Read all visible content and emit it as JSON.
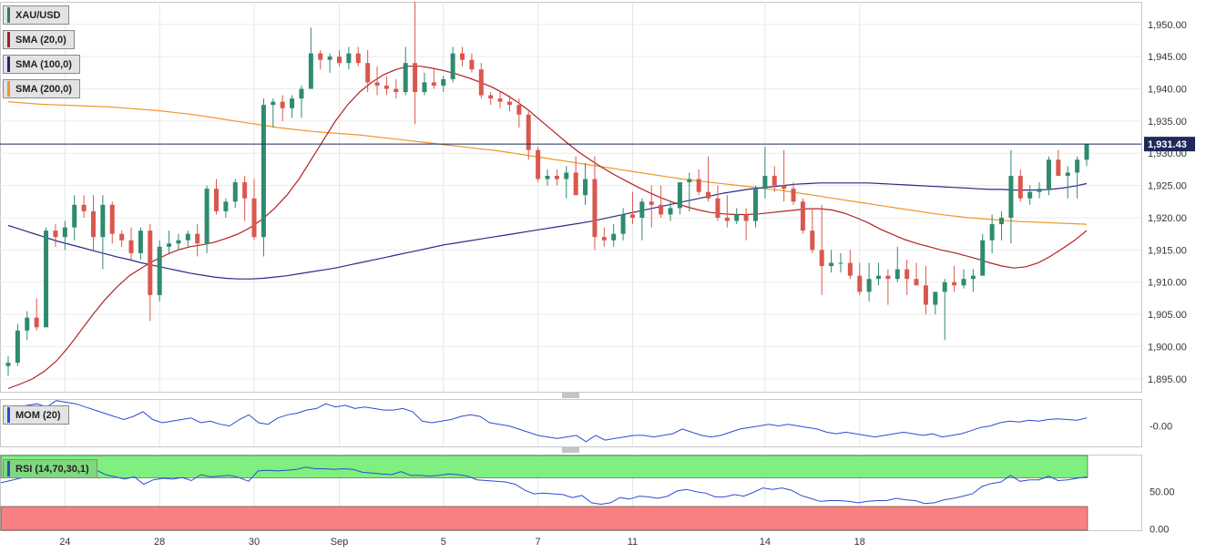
{
  "legends": [
    {
      "label": "XAU/USD",
      "color": "#2e7d65"
    },
    {
      "label": "SMA (20,0)",
      "color": "#a02020"
    },
    {
      "label": "SMA (100,0)",
      "color": "#222288"
    },
    {
      "label": "SMA (200,0)",
      "color": "#f0962a"
    }
  ],
  "mom_label": "MOM (20)",
  "rsi_label": "RSI (14,70,30,1)",
  "colors": {
    "up": "#2e8b6e",
    "down": "#d9584e",
    "sma20": "#b22222",
    "sma100": "#2a2a8a",
    "sma200": "#f0962a",
    "mom": "#2d4bd6",
    "rsi": "#2d4bd6",
    "rsi_over": "#7ff07f",
    "rsi_under": "#f98080",
    "price_line": "#1f2a5a"
  },
  "chart_data": [
    {
      "type": "candlestick",
      "title": "XAU/USD",
      "current_price_label": "1,931.43",
      "y_ticks": [
        "1,950.00",
        "1,945.00",
        "1,940.00",
        "1,935.00",
        "1,930.00",
        "1,925.00",
        "1,920.00",
        "1,915.00",
        "1,910.00",
        "1,905.00",
        "1,900.00",
        "1,895.00"
      ],
      "y_tick_values": [
        1950,
        1945,
        1940,
        1935,
        1930,
        1925,
        1920,
        1915,
        1910,
        1905,
        1900,
        1895
      ],
      "ylim": [
        1893,
        1953.5
      ],
      "x_ticks": [
        "24",
        "28",
        "30",
        "Sep",
        "5",
        "7",
        "11",
        "14",
        "18"
      ],
      "x_tick_index": [
        6,
        16,
        26,
        35,
        46,
        56,
        66,
        80,
        90
      ],
      "candles": [
        [
          1897.0,
          1898.5,
          1895.5,
          1897.5
        ],
        [
          1897.5,
          1903.5,
          1897.0,
          1902.5
        ],
        [
          1902.5,
          1905.5,
          1901.0,
          1904.5
        ],
        [
          1904.5,
          1907.5,
          1902.5,
          1903.0
        ],
        [
          1903.0,
          1918.5,
          1903.0,
          1918.0
        ],
        [
          1918.0,
          1919.0,
          1915.5,
          1917.0
        ],
        [
          1917.0,
          1919.5,
          1915.0,
          1918.5
        ],
        [
          1918.5,
          1923.5,
          1916.5,
          1922.0
        ],
        [
          1922.0,
          1923.5,
          1920.0,
          1921.0
        ],
        [
          1921.0,
          1923.5,
          1915.0,
          1917.0
        ],
        [
          1917.0,
          1923.5,
          1912.0,
          1922.0
        ],
        [
          1922.0,
          1922.5,
          1916.0,
          1917.5
        ],
        [
          1917.5,
          1918.0,
          1915.5,
          1916.5
        ],
        [
          1916.5,
          1918.5,
          1913.5,
          1914.5
        ],
        [
          1914.5,
          1918.5,
          1913.5,
          1918.0
        ],
        [
          1918.0,
          1919.0,
          1904.0,
          1908.0
        ],
        [
          1908.0,
          1916.5,
          1907.0,
          1915.5
        ],
        [
          1915.5,
          1918.0,
          1914.5,
          1916.0
        ],
        [
          1916.0,
          1917.5,
          1915.0,
          1916.5
        ],
        [
          1916.5,
          1918.0,
          1915.5,
          1917.5
        ],
        [
          1917.5,
          1919.0,
          1914.0,
          1916.0
        ],
        [
          1916.0,
          1925.0,
          1914.5,
          1924.5
        ],
        [
          1924.5,
          1926.0,
          1920.5,
          1921.0
        ],
        [
          1921.0,
          1923.0,
          1920.0,
          1922.5
        ],
        [
          1922.5,
          1926.0,
          1921.5,
          1925.5
        ],
        [
          1925.5,
          1926.5,
          1919.5,
          1923.0
        ],
        [
          1923.0,
          1926.0,
          1916.5,
          1917.0
        ],
        [
          1917.0,
          1938.5,
          1914.0,
          1937.5
        ],
        [
          1937.5,
          1938.5,
          1934.0,
          1938.0
        ],
        [
          1938.0,
          1939.0,
          1935.0,
          1937.0
        ],
        [
          1937.0,
          1939.0,
          1935.5,
          1938.5
        ],
        [
          1938.5,
          1940.5,
          1935.5,
          1940.0
        ],
        [
          1940.0,
          1949.5,
          1940.0,
          1945.5
        ],
        [
          1945.5,
          1946.0,
          1943.0,
          1944.5
        ],
        [
          1944.5,
          1945.5,
          1942.5,
          1945.0
        ],
        [
          1945.0,
          1946.0,
          1943.5,
          1944.0
        ],
        [
          1944.0,
          1946.5,
          1943.0,
          1945.5
        ],
        [
          1945.5,
          1946.5,
          1943.5,
          1944.0
        ],
        [
          1944.0,
          1946.0,
          1939.5,
          1941.0
        ],
        [
          1941.0,
          1943.5,
          1939.0,
          1940.5
        ],
        [
          1940.5,
          1942.0,
          1939.0,
          1940.0
        ],
        [
          1940.0,
          1941.5,
          1938.5,
          1939.5
        ],
        [
          1939.5,
          1946.5,
          1939.0,
          1944.0
        ],
        [
          1944.0,
          1953.5,
          1934.5,
          1939.5
        ],
        [
          1939.5,
          1942.5,
          1939.0,
          1941.0
        ],
        [
          1941.0,
          1943.0,
          1940.0,
          1940.5
        ],
        [
          1940.5,
          1942.0,
          1939.5,
          1941.5
        ],
        [
          1941.5,
          1946.5,
          1941.0,
          1945.5
        ],
        [
          1945.5,
          1946.5,
          1943.5,
          1944.5
        ],
        [
          1944.5,
          1945.5,
          1942.5,
          1943.0
        ],
        [
          1943.0,
          1944.0,
          1938.5,
          1939.0
        ],
        [
          1939.0,
          1939.5,
          1937.5,
          1938.5
        ],
        [
          1938.5,
          1939.5,
          1937.0,
          1938.0
        ],
        [
          1938.0,
          1939.0,
          1936.5,
          1937.5
        ],
        [
          1937.5,
          1938.5,
          1934.0,
          1936.0
        ],
        [
          1936.0,
          1936.5,
          1929.0,
          1930.5
        ],
        [
          1930.5,
          1931.0,
          1925.5,
          1926.0
        ],
        [
          1926.0,
          1927.5,
          1925.0,
          1926.5
        ],
        [
          1926.5,
          1927.5,
          1925.0,
          1926.0
        ],
        [
          1926.0,
          1928.0,
          1923.0,
          1927.0
        ],
        [
          1927.0,
          1929.5,
          1923.5,
          1923.5
        ],
        [
          1923.5,
          1928.5,
          1922.0,
          1926.0
        ],
        [
          1926.0,
          1929.5,
          1915.0,
          1917.0
        ],
        [
          1917.0,
          1918.5,
          1915.5,
          1916.5
        ],
        [
          1916.5,
          1919.0,
          1915.5,
          1917.5
        ],
        [
          1917.5,
          1921.5,
          1916.5,
          1920.5
        ],
        [
          1920.5,
          1924.0,
          1919.0,
          1920.0
        ],
        [
          1920.0,
          1923.0,
          1916.5,
          1922.5
        ],
        [
          1922.5,
          1925.0,
          1918.5,
          1922.0
        ],
        [
          1922.0,
          1925.0,
          1920.0,
          1920.5
        ],
        [
          1920.5,
          1922.5,
          1919.5,
          1921.5
        ],
        [
          1921.5,
          1925.0,
          1920.5,
          1925.5
        ],
        [
          1925.5,
          1927.0,
          1921.0,
          1926.0
        ],
        [
          1926.0,
          1927.5,
          1923.5,
          1924.0
        ],
        [
          1924.0,
          1929.5,
          1922.5,
          1923.0
        ],
        [
          1923.0,
          1925.0,
          1919.5,
          1920.0
        ],
        [
          1920.0,
          1923.5,
          1918.5,
          1919.5
        ],
        [
          1919.5,
          1921.5,
          1919.0,
          1920.5
        ],
        [
          1920.5,
          1921.5,
          1916.5,
          1919.5
        ],
        [
          1919.5,
          1925.0,
          1918.5,
          1924.5
        ],
        [
          1924.5,
          1931.0,
          1923.0,
          1926.5
        ],
        [
          1926.5,
          1928.0,
          1924.0,
          1925.0
        ],
        [
          1925.0,
          1930.5,
          1922.5,
          1924.5
        ],
        [
          1924.5,
          1925.5,
          1922.0,
          1922.5
        ],
        [
          1922.5,
          1923.0,
          1917.5,
          1918.0
        ],
        [
          1918.0,
          1921.5,
          1914.5,
          1915.0
        ],
        [
          1915.0,
          1922.0,
          1908.0,
          1912.5
        ],
        [
          1912.5,
          1915.0,
          1911.5,
          1913.0
        ],
        [
          1913.0,
          1914.5,
          1911.5,
          1913.0
        ],
        [
          1913.0,
          1915.0,
          1910.5,
          1911.0
        ],
        [
          1911.0,
          1913.0,
          1908.0,
          1908.5
        ],
        [
          1908.5,
          1913.0,
          1907.0,
          1910.5
        ],
        [
          1910.5,
          1913.0,
          1909.5,
          1911.0
        ],
        [
          1911.0,
          1912.0,
          1906.5,
          1910.5
        ],
        [
          1910.5,
          1915.5,
          1910.0,
          1912.0
        ],
        [
          1912.0,
          1913.5,
          1908.0,
          1910.5
        ],
        [
          1910.5,
          1913.0,
          1910.0,
          1909.5
        ],
        [
          1909.5,
          1912.5,
          1905.0,
          1906.5
        ],
        [
          1906.5,
          1908.5,
          1905.0,
          1908.5
        ],
        [
          1908.5,
          1910.5,
          1901.0,
          1910.0
        ],
        [
          1910.0,
          1912.5,
          1908.5,
          1909.5
        ],
        [
          1909.5,
          1912.0,
          1909.0,
          1910.5
        ],
        [
          1910.5,
          1912.0,
          1908.5,
          1911.0
        ],
        [
          1911.0,
          1917.5,
          1911.0,
          1916.5
        ],
        [
          1916.5,
          1920.5,
          1914.5,
          1919.0
        ],
        [
          1919.0,
          1921.0,
          1916.5,
          1920.0
        ],
        [
          1920.0,
          1930.5,
          1916.0,
          1926.5
        ],
        [
          1926.5,
          1927.5,
          1922.5,
          1923.0
        ],
        [
          1923.0,
          1925.0,
          1922.0,
          1924.0
        ],
        [
          1924.0,
          1925.5,
          1923.0,
          1924.5
        ],
        [
          1924.5,
          1929.5,
          1923.5,
          1929.0
        ],
        [
          1929.0,
          1930.5,
          1926.5,
          1926.5
        ],
        [
          1926.5,
          1928.0,
          1923.0,
          1927.0
        ],
        [
          1927.0,
          1929.5,
          1923.0,
          1929.0
        ],
        [
          1929.0,
          1931.5,
          1928.0,
          1931.43
        ]
      ],
      "sma20": [
        1893.5,
        1894.2,
        1895.0,
        1896.2,
        1897.8,
        1900.0,
        1902.5,
        1905.0,
        1907.3,
        1909.3,
        1911.0,
        1912.2,
        1913.3,
        1914.2,
        1915.0,
        1915.5,
        1915.8,
        1916.2,
        1916.8,
        1917.5,
        1918.5,
        1919.8,
        1921.5,
        1923.5,
        1926.0,
        1929.0,
        1932.0,
        1935.0,
        1937.5,
        1939.5,
        1941.0,
        1942.2,
        1943.0,
        1943.5,
        1943.5,
        1943.2,
        1942.8,
        1942.3,
        1941.7,
        1941.0,
        1940.2,
        1939.2,
        1938.0,
        1936.6,
        1935.0,
        1933.4,
        1931.8,
        1930.3,
        1929.0,
        1927.8,
        1926.7,
        1925.7,
        1924.7,
        1923.8,
        1923.0,
        1922.3,
        1921.7,
        1921.2,
        1920.8,
        1920.6,
        1920.5,
        1920.5,
        1920.6,
        1920.8,
        1921.0,
        1921.2,
        1921.4,
        1921.4,
        1921.2,
        1920.7,
        1920.0,
        1919.2,
        1918.2,
        1917.4,
        1916.6,
        1916.0,
        1915.5,
        1915.0,
        1914.6,
        1914.1,
        1913.6,
        1913.0,
        1912.5,
        1912.2,
        1912.4,
        1913.0,
        1914.0,
        1915.2,
        1916.5,
        1918.0
      ],
      "sma100": [
        1918.8,
        1918.2,
        1917.6,
        1917.0,
        1916.4,
        1915.9,
        1915.4,
        1914.9,
        1914.4,
        1913.9,
        1913.5,
        1913.0,
        1912.6,
        1912.2,
        1911.8,
        1911.4,
        1911.1,
        1910.8,
        1910.6,
        1910.5,
        1910.5,
        1910.6,
        1910.8,
        1911.0,
        1911.3,
        1911.6,
        1911.9,
        1912.2,
        1912.6,
        1913.0,
        1913.4,
        1913.8,
        1914.2,
        1914.6,
        1915.0,
        1915.4,
        1915.8,
        1916.1,
        1916.4,
        1916.7,
        1917.0,
        1917.3,
        1917.6,
        1917.9,
        1918.2,
        1918.5,
        1918.8,
        1919.1,
        1919.4,
        1919.8,
        1920.2,
        1920.6,
        1921.0,
        1921.4,
        1921.8,
        1922.2,
        1922.6,
        1923.0,
        1923.4,
        1923.8,
        1924.1,
        1924.4,
        1924.6,
        1924.8,
        1925.0,
        1925.2,
        1925.3,
        1925.4,
        1925.4,
        1925.4,
        1925.4,
        1925.4,
        1925.3,
        1925.2,
        1925.1,
        1925.0,
        1924.9,
        1924.8,
        1924.7,
        1924.6,
        1924.5,
        1924.4,
        1924.4,
        1924.3,
        1924.3,
        1924.3,
        1924.4,
        1924.6,
        1924.9,
        1925.3
      ],
      "sma200": [
        1938.0,
        1937.8,
        1937.6,
        1937.5,
        1937.4,
        1937.3,
        1937.2,
        1937.0,
        1936.8,
        1936.6,
        1936.3,
        1936.0,
        1935.6,
        1935.2,
        1934.8,
        1934.4,
        1934.0,
        1933.7,
        1933.4,
        1933.2,
        1933.0,
        1932.8,
        1932.5,
        1932.2,
        1931.9,
        1931.6,
        1931.3,
        1931.0,
        1930.7,
        1930.4,
        1930.0,
        1929.6,
        1929.2,
        1928.8,
        1928.4,
        1928.0,
        1927.6,
        1927.2,
        1926.8,
        1926.4,
        1926.0,
        1925.7,
        1925.4,
        1925.1,
        1924.8,
        1924.5,
        1924.2,
        1923.8,
        1923.4,
        1923.0,
        1922.6,
        1922.2,
        1921.8,
        1921.4,
        1921.0,
        1920.6,
        1920.3,
        1920.0,
        1919.8,
        1919.6,
        1919.4,
        1919.3,
        1919.2,
        1919.1,
        1919.0
      ],
      "sma20_start": 0,
      "sma100_start": 0,
      "sma200_start": 0
    },
    {
      "type": "line",
      "title": "MOM (20)",
      "y_ticks": [
        "-0.00"
      ],
      "values": [
        0.55,
        0.6,
        0.65,
        0.7,
        0.6,
        0.8,
        0.75,
        0.7,
        0.6,
        0.5,
        0.4,
        0.3,
        0.2,
        0.3,
        0.45,
        0.2,
        0.1,
        0.15,
        0.2,
        0.25,
        0.1,
        0.15,
        0.05,
        0.0,
        0.2,
        0.35,
        0.1,
        0.05,
        0.25,
        0.35,
        0.4,
        0.5,
        0.55,
        0.7,
        0.6,
        0.65,
        0.55,
        0.6,
        0.55,
        0.5,
        0.5,
        0.55,
        0.45,
        0.15,
        0.1,
        0.15,
        0.2,
        0.3,
        0.35,
        0.3,
        0.1,
        0.05,
        0.0,
        -0.1,
        -0.2,
        -0.3,
        -0.35,
        -0.4,
        -0.35,
        -0.3,
        -0.5,
        -0.3,
        -0.45,
        -0.4,
        -0.35,
        -0.3,
        -0.3,
        -0.35,
        -0.3,
        -0.25,
        -0.1,
        -0.2,
        -0.3,
        -0.35,
        -0.3,
        -0.2,
        -0.1,
        -0.05,
        0.0,
        0.05,
        0.0,
        0.05,
        0.0,
        -0.05,
        -0.1,
        -0.2,
        -0.25,
        -0.2,
        -0.25,
        -0.3,
        -0.35,
        -0.3,
        -0.25,
        -0.2,
        -0.25,
        -0.3,
        -0.25,
        -0.35,
        -0.3,
        -0.25,
        -0.15,
        -0.05,
        0.0,
        0.1,
        0.15,
        0.12,
        0.18,
        0.15,
        0.2,
        0.22,
        0.2,
        0.18,
        0.25
      ],
      "ylim": [
        -0.65,
        0.85
      ]
    },
    {
      "type": "line",
      "title": "RSI (14,70,30,1)",
      "y_ticks": [
        "50.00",
        "0.00"
      ],
      "y_tick_values": [
        50,
        0
      ],
      "overbought": 70,
      "oversold": 30,
      "ylim": [
        -2,
        100
      ],
      "values": [
        62,
        65,
        68,
        70,
        76,
        73,
        75,
        80,
        78,
        74,
        79,
        73,
        70,
        67,
        70,
        60,
        66,
        68,
        67,
        69,
        65,
        73,
        70,
        71,
        72,
        69,
        64,
        78,
        79,
        78,
        79,
        80,
        83,
        81,
        81,
        80,
        81,
        80,
        76,
        75,
        74,
        73,
        77,
        72,
        72,
        71,
        72,
        74,
        73,
        71,
        66,
        65,
        64,
        63,
        60,
        52,
        47,
        48,
        47,
        46,
        42,
        45,
        35,
        33,
        35,
        42,
        40,
        44,
        43,
        41,
        44,
        51,
        53,
        50,
        48,
        43,
        43,
        46,
        44,
        49,
        55,
        53,
        55,
        52,
        45,
        41,
        37,
        38,
        38,
        37,
        35,
        37,
        38,
        38,
        41,
        39,
        38,
        34,
        35,
        39,
        41,
        44,
        47,
        57,
        61,
        63,
        72,
        64,
        66,
        66,
        71,
        65,
        66,
        68,
        70
      ]
    }
  ]
}
